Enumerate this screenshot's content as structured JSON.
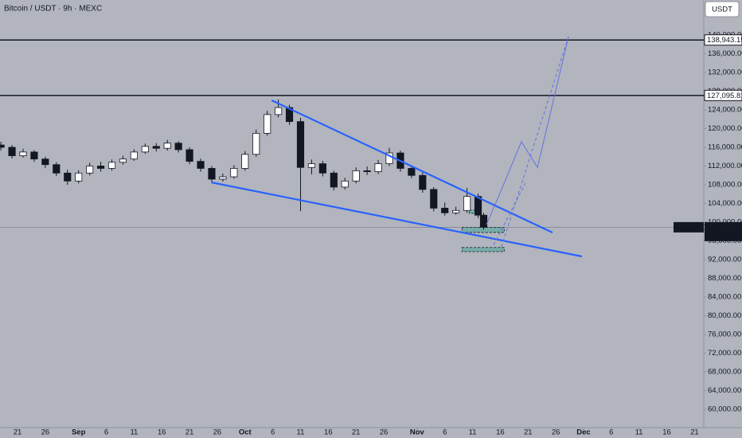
{
  "header": {
    "title": "Bitcoin / USDT · 9h · MEXC",
    "currency_button": "USDT"
  },
  "chart_data": {
    "type": "candlestick",
    "symbol": "BTCUSDT",
    "x": [
      -3,
      -1,
      1,
      3,
      5,
      7,
      9,
      11,
      13,
      15,
      17,
      19,
      21,
      23,
      25,
      27,
      29,
      31,
      33,
      35,
      37,
      39,
      41,
      43,
      45,
      47,
      49,
      51,
      53,
      55,
      57,
      59,
      61,
      63,
      65,
      67,
      69,
      71,
      73,
      75,
      77,
      79,
      81,
      83,
      84
    ],
    "open": [
      116500,
      116000,
      114200,
      115000,
      113500,
      112300,
      110500,
      108800,
      110500,
      112000,
      111500,
      112800,
      113500,
      115000,
      116200,
      115800,
      116900,
      115500,
      113000,
      111500,
      109200,
      109700,
      111500,
      114500,
      119000,
      123000,
      124500,
      121500,
      111700,
      112500,
      110500,
      107500,
      108800,
      111000,
      110800,
      112500,
      114800,
      111500,
      110000,
      107000,
      103000,
      102000,
      102500,
      105500,
      101500
    ],
    "high": [
      117200,
      116500,
      115700,
      115400,
      114000,
      112800,
      111200,
      111100,
      112700,
      112900,
      113400,
      114200,
      115600,
      116800,
      116900,
      117600,
      117300,
      116000,
      113600,
      112000,
      110400,
      112200,
      115200,
      119800,
      123800,
      126200,
      125100,
      122300,
      113400,
      113100,
      111000,
      109500,
      111700,
      111900,
      113300,
      115900,
      115300,
      112000,
      110600,
      107500,
      104200,
      103300,
      107300,
      106100,
      102000
    ],
    "low": [
      115300,
      113600,
      113800,
      112900,
      111600,
      109900,
      108000,
      108300,
      110000,
      110800,
      111000,
      112300,
      113100,
      114600,
      115100,
      115300,
      114900,
      112400,
      110800,
      108600,
      108700,
      109300,
      111000,
      114000,
      118500,
      122400,
      120800,
      102400,
      110200,
      109800,
      106800,
      107000,
      108300,
      110100,
      110300,
      112000,
      110800,
      109400,
      106300,
      102300,
      101400,
      101600,
      102000,
      100900,
      98400
    ],
    "close": [
      116000,
      114200,
      115000,
      113500,
      112300,
      110500,
      108800,
      110500,
      112000,
      111500,
      112800,
      113500,
      115000,
      116200,
      115800,
      116900,
      115500,
      113000,
      111500,
      109200,
      109700,
      111500,
      114500,
      119000,
      123000,
      124500,
      121500,
      111700,
      112500,
      110500,
      107500,
      108800,
      111000,
      110800,
      112500,
      114800,
      111500,
      110000,
      107000,
      103000,
      102000,
      102500,
      105500,
      101500,
      98915.41
    ],
    "colors": {
      "up": "#ffffff",
      "down": "#131722",
      "wick": "#131722"
    },
    "xlim": [
      -3.16,
      123.67
    ],
    "xticks": [
      {
        "value": 0,
        "label": "21"
      },
      {
        "value": 5,
        "label": "26"
      },
      {
        "value": 11,
        "label": "Sep"
      },
      {
        "value": 16,
        "label": "6"
      },
      {
        "value": 21,
        "label": "11"
      },
      {
        "value": 26,
        "label": "16"
      },
      {
        "value": 31,
        "label": "21"
      },
      {
        "value": 36,
        "label": "26"
      },
      {
        "value": 41,
        "label": "Oct"
      },
      {
        "value": 46,
        "label": "6"
      },
      {
        "value": 51,
        "label": "11"
      },
      {
        "value": 56,
        "label": "16"
      },
      {
        "value": 61,
        "label": "21"
      },
      {
        "value": 66,
        "label": "26"
      },
      {
        "value": 72,
        "label": "Nov"
      },
      {
        "value": 77,
        "label": "6"
      },
      {
        "value": 82,
        "label": "11"
      },
      {
        "value": 87,
        "label": "16"
      },
      {
        "value": 92,
        "label": "21"
      },
      {
        "value": 97,
        "label": "26"
      },
      {
        "value": 102,
        "label": "Dec"
      },
      {
        "value": 107,
        "label": "6"
      },
      {
        "value": 112,
        "label": "11"
      },
      {
        "value": 117,
        "label": "16"
      },
      {
        "value": 122,
        "label": "21"
      }
    ],
    "ylim": [
      56255,
      147490
    ],
    "yticks": [
      {
        "value": 60000,
        "label": "60,000.00"
      },
      {
        "value": 64000,
        "label": "64,000.00"
      },
      {
        "value": 68000,
        "label": "68,000.00"
      },
      {
        "value": 72000,
        "label": "72,000.00"
      },
      {
        "value": 76000,
        "label": "76,000.00"
      },
      {
        "value": 80000,
        "label": "80,000.00"
      },
      {
        "value": 84000,
        "label": "84,000.00"
      },
      {
        "value": 88000,
        "label": "88,000.00"
      },
      {
        "value": 92000,
        "label": "92,000.00"
      },
      {
        "value": 96000,
        "label": "96,000.00"
      },
      {
        "value": 100000,
        "label": "100,000.00"
      },
      {
        "value": 104000,
        "label": "104,000.00"
      },
      {
        "value": 108000,
        "label": "108,000.00"
      },
      {
        "value": 112000,
        "label": "112,000.00"
      },
      {
        "value": 116000,
        "label": "116,000.00"
      },
      {
        "value": 120000,
        "label": "120,000.00"
      },
      {
        "value": 124000,
        "label": "124,000.00"
      },
      {
        "value": 128000,
        "label": "128,000.00"
      },
      {
        "value": 132000,
        "label": "132,000.00"
      },
      {
        "value": 136000,
        "label": "136,000.00"
      },
      {
        "value": 140000,
        "label": "140,000.00"
      }
    ],
    "last_price": {
      "value": 98915.41,
      "label": "98,915.41"
    },
    "countdown": "03:20:52",
    "levels": [
      {
        "value": 138943.15,
        "label": "138,943.15"
      },
      {
        "value": 127095.81,
        "label": "127,095.81"
      }
    ],
    "trendlines": [
      {
        "color": "#2962ff",
        "x": [
          45.8,
          96.4
        ],
        "y": [
          126043,
          97787
        ]
      },
      {
        "color": "#2962ff",
        "x": [
          34.9,
          101.7
        ],
        "y": [
          108511,
          92681
        ]
      }
    ],
    "projection": {
      "color": "#6272e0",
      "x": [
        84.5,
        86.8,
        90.8,
        93.7,
        99.3
      ],
      "y": [
        99500,
        105800,
        117200,
        111700,
        139700
      ]
    },
    "projection_dashed": [
      {
        "color": "#6272e0",
        "x": [
          85.8,
          91.5
        ],
        "y": [
          95100,
          108300
        ]
      },
      {
        "color": "#6272e0",
        "x": [
          87.2,
          99.3
        ],
        "y": [
          94700,
          139700
        ]
      }
    ],
    "zones": [
      {
        "color": "#089981",
        "x": [
          80.1,
          87.7
        ],
        "y": [
          97800,
          98900
        ]
      },
      {
        "color": "#089981",
        "x": [
          80.1,
          87.7
        ],
        "y": [
          93700,
          94600
        ]
      },
      {
        "color": "#089981",
        "x": [
          81.4,
          83.3
        ],
        "y": [
          101900,
          102600
        ]
      }
    ]
  }
}
